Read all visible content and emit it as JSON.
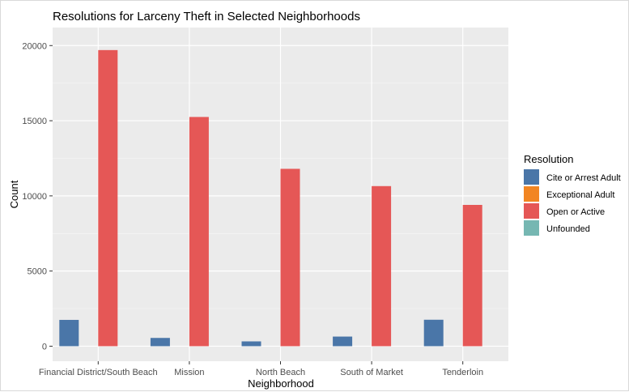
{
  "chart_data": {
    "type": "bar",
    "title": "Resolutions for Larceny Theft in Selected Neighborhoods",
    "xlabel": "Neighborhood",
    "ylabel": "Count",
    "categories": [
      "Financial District/South Beach",
      "Mission",
      "North Beach",
      "South of Market",
      "Tenderloin"
    ],
    "series": [
      {
        "name": "Cite or Arrest Adult",
        "color": "#4A76A8",
        "values": [
          1750,
          550,
          320,
          640,
          1760
        ]
      },
      {
        "name": "Exceptional Adult",
        "color": "#F28522",
        "values": [
          0,
          0,
          0,
          0,
          0
        ]
      },
      {
        "name": "Open or Active",
        "color": "#E55756",
        "values": [
          19700,
          15250,
          11800,
          10650,
          9400
        ]
      },
      {
        "name": "Unfounded",
        "color": "#76B7B2",
        "values": [
          0,
          0,
          0,
          0,
          0
        ]
      }
    ],
    "ylim": [
      -1000,
      21200
    ],
    "yticks": [
      0,
      5000,
      10000,
      15000,
      20000
    ],
    "legend_title": "Resolution",
    "legend_position": "right",
    "grid": true,
    "panel_background": "#EBEBEB"
  }
}
